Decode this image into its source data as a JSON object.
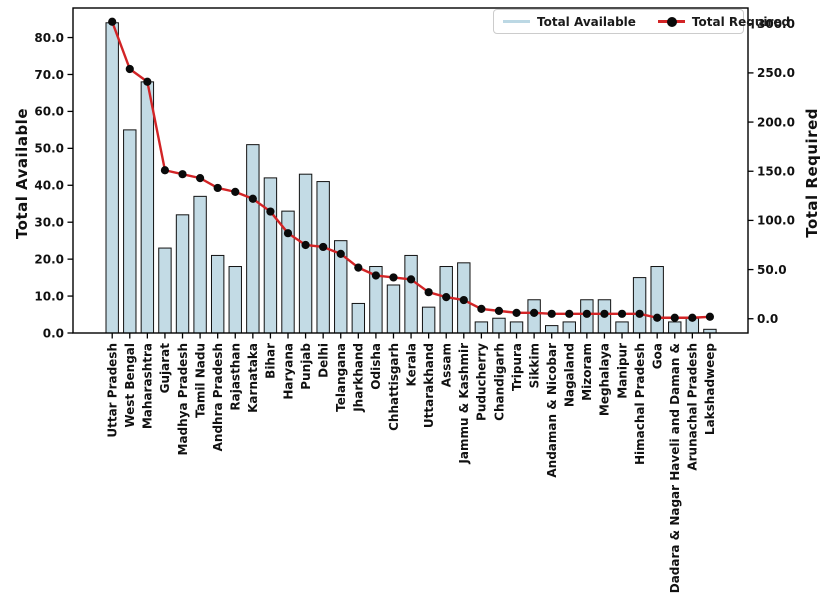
{
  "figure": {
    "background": "#ffffff"
  },
  "chart_data": {
    "type": "bar",
    "title": "",
    "categories": [
      "Uttar Pradesh",
      "West Bengal",
      "Maharashtra",
      "Gujarat",
      "Madhya Pradesh",
      "Tamil Nadu",
      "Andhra Pradesh",
      "Rajasthan",
      "Karnataka",
      "Bihar",
      "Haryana",
      "Punjab",
      "Delhi",
      "Telangana",
      "Jharkhand",
      "Odisha",
      "Chhattisgarh",
      "Kerala",
      "Uttarakhand",
      "Assam",
      "Jammu & Kashmir",
      "Puducherry",
      "Chandigarh",
      "Tripura",
      "Sikkim",
      "Andaman & Nicobar",
      "Nagaland",
      "Mizoram",
      "Meghalaya",
      "Manipur",
      "Himachal Pradesh",
      "Goa",
      "Dadara & Nagar Haveli and Daman &",
      "Arunachal Pradesh",
      "Lakshadweep"
    ],
    "series": [
      {
        "name": "Total Available",
        "type": "bar",
        "axis": "left",
        "color": "#c3dbe5",
        "edge_color": "#111111",
        "values": [
          84,
          55,
          68,
          23,
          32,
          37,
          21,
          18,
          51,
          42,
          33,
          43,
          41,
          25,
          8,
          18,
          13,
          21,
          7,
          18,
          19,
          3,
          4,
          3,
          9,
          2,
          3,
          9,
          9,
          3,
          15,
          18,
          3,
          4,
          1
        ]
      },
      {
        "name": "Total Required",
        "type": "line",
        "axis": "right",
        "color": "#d22426",
        "marker": "circle",
        "marker_color": "#0a0a0a",
        "values": [
          302,
          254,
          241,
          151,
          147,
          143,
          133,
          129,
          122,
          109,
          87,
          75,
          73,
          66,
          52,
          44,
          42,
          40,
          27,
          22,
          19,
          10,
          8,
          6,
          6,
          5,
          5,
          5,
          5,
          5,
          5,
          1,
          1,
          1,
          2
        ]
      }
    ],
    "left_axis": {
      "label": "Total Available",
      "tick_values": [
        0,
        10,
        20,
        30,
        40,
        50,
        60,
        70,
        80
      ],
      "tick_labels": [
        "0.0",
        "10.0",
        "20.0",
        "30.0",
        "40.0",
        "50.0",
        "60.0",
        "70.0",
        "80.0"
      ],
      "min": 0,
      "max": 88
    },
    "right_axis": {
      "label": "Total Required",
      "tick_values": [
        0,
        50,
        100,
        150,
        200,
        250,
        300
      ],
      "tick_labels": [
        "0.0",
        "50.0",
        "100.0",
        "150.0",
        "200.0",
        "250.0",
        "300.0"
      ],
      "min": -14.5,
      "max": 316
    },
    "x_axis": {
      "tick_label_rotation": 90
    },
    "grid": false,
    "legend_position": "upper right"
  }
}
